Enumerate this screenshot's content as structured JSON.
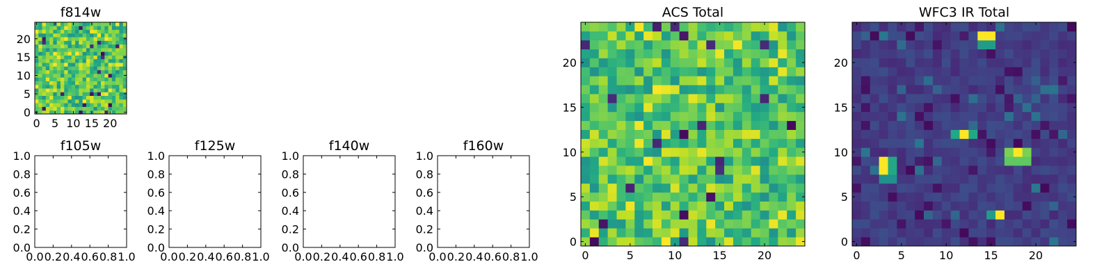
{
  "chart_data": [
    {
      "type": "heatmap",
      "title": "f814w",
      "nx": 25,
      "ny": 25,
      "seed": 11,
      "kind": "acs",
      "xticks": [
        0,
        5,
        10,
        15,
        20
      ],
      "yticks": [
        0,
        5,
        10,
        15,
        20
      ],
      "xlim": [
        -0.5,
        24.5
      ],
      "ylim": [
        -0.5,
        24.5
      ],
      "grid": false,
      "colormap": "viridis"
    },
    {
      "type": "empty",
      "title": "f105w",
      "xticks": [
        "0.0",
        "0.2",
        "0.4",
        "0.6",
        "0.8",
        "1.0"
      ],
      "yticks": [
        "0.0",
        "0.2",
        "0.4",
        "0.6",
        "0.8",
        "1.0"
      ],
      "xlim": [
        0,
        1
      ],
      "ylim": [
        0,
        1
      ]
    },
    {
      "type": "empty",
      "title": "f125w",
      "xticks": [
        "0.0",
        "0.2",
        "0.4",
        "0.6",
        "0.8",
        "1.0"
      ],
      "yticks": [
        "0.0",
        "0.2",
        "0.4",
        "0.6",
        "0.8",
        "1.0"
      ],
      "xlim": [
        0,
        1
      ],
      "ylim": [
        0,
        1
      ]
    },
    {
      "type": "empty",
      "title": "f140w",
      "xticks": [
        "0.0",
        "0.2",
        "0.4",
        "0.6",
        "0.8",
        "1.0"
      ],
      "yticks": [
        "0.0",
        "0.2",
        "0.4",
        "0.6",
        "0.8",
        "1.0"
      ],
      "xlim": [
        0,
        1
      ],
      "ylim": [
        0,
        1
      ]
    },
    {
      "type": "empty",
      "title": "f160w",
      "xticks": [
        "0.0",
        "0.2",
        "0.4",
        "0.6",
        "0.8",
        "1.0"
      ],
      "yticks": [
        "0.0",
        "0.2",
        "0.4",
        "0.6",
        "0.8",
        "1.0"
      ],
      "xlim": [
        0,
        1
      ],
      "ylim": [
        0,
        1
      ]
    },
    {
      "type": "heatmap",
      "title": "ACS Total",
      "nx": 25,
      "ny": 25,
      "seed": 37,
      "kind": "acs",
      "xticks": [
        0,
        5,
        10,
        15,
        20
      ],
      "yticks": [
        0,
        5,
        10,
        15,
        20
      ],
      "xlim": [
        -0.5,
        24.5
      ],
      "ylim": [
        -0.5,
        24.5
      ],
      "grid": false,
      "colormap": "viridis"
    },
    {
      "type": "heatmap",
      "title": "WFC3 IR Total",
      "nx": 25,
      "ny": 25,
      "seed": 73,
      "kind": "ir",
      "xticks": [
        0,
        5,
        10,
        15,
        20
      ],
      "yticks": [
        0,
        5,
        10,
        15,
        20
      ],
      "xlim": [
        -0.5,
        24.5
      ],
      "ylim": [
        -0.5,
        24.5
      ],
      "grid": false,
      "colormap": "viridis",
      "bright_sources": [
        {
          "x": [
            14,
            15
          ],
          "y": [
            23
          ],
          "level": 1.0
        },
        {
          "x": [
            14,
            15
          ],
          "y": [
            22
          ],
          "level": 0.55
        },
        {
          "x": [
            3
          ],
          "y": [
            8,
            9
          ],
          "level": 1.0
        },
        {
          "x": [
            4
          ],
          "y": [
            8,
            9
          ],
          "level": 0.6
        },
        {
          "x": [
            3,
            4
          ],
          "y": [
            7
          ],
          "level": 0.5
        },
        {
          "x": [
            12
          ],
          "y": [
            12
          ],
          "level": 1.0
        },
        {
          "x": [
            11,
            13
          ],
          "y": [
            12
          ],
          "level": 0.6
        },
        {
          "x": [
            18
          ],
          "y": [
            10
          ],
          "level": 1.0
        },
        {
          "x": [
            17,
            19
          ],
          "y": [
            10
          ],
          "level": 0.8
        },
        {
          "x": [
            17,
            18,
            19
          ],
          "y": [
            9
          ],
          "level": 0.75
        },
        {
          "x": [
            16
          ],
          "y": [
            3
          ],
          "level": 1.0
        },
        {
          "x": [
            15
          ],
          "y": [
            3
          ],
          "level": 0.55
        }
      ]
    }
  ]
}
